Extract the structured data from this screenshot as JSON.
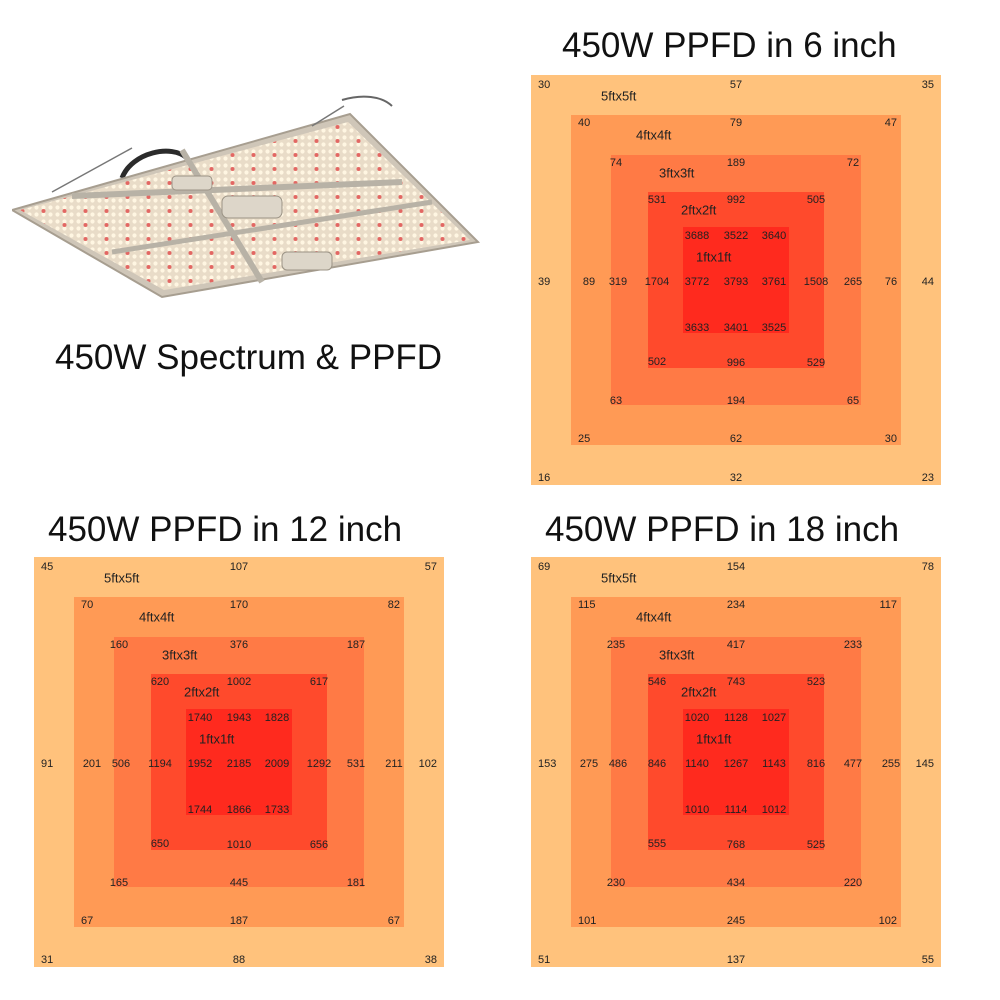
{
  "product_title": "450W Spectrum & PPFD",
  "colors": {
    "ring_5ft": "#FFC27C",
    "ring_4ft": "#FF9A55",
    "ring_3ft": "#FF7A45",
    "ring_2ft": "#FF4A2C",
    "ring_1ft": "#FF2A1E",
    "value_text": "#222222"
  },
  "chart_data": [
    {
      "type": "heatmap",
      "title": "450W PPFD in 6 inch",
      "rings": [
        {
          "label": "5ftx5ft",
          "corners": [
            30,
            57,
            35,
            39,
            44,
            16,
            32,
            23
          ]
        },
        {
          "label": "4ftx4ft",
          "corners": [
            40,
            79,
            47,
            89,
            76,
            25,
            62,
            30
          ]
        },
        {
          "label": "3ftx3ft",
          "corners": [
            74,
            189,
            72,
            319,
            265,
            63,
            194,
            65
          ]
        },
        {
          "label": "2ftx2ft",
          "corners": [
            531,
            992,
            505,
            1704,
            1508,
            502,
            996,
            529
          ]
        },
        {
          "label": "1ftx1ft",
          "grid": [
            [
              3688,
              3522,
              3640
            ],
            [
              3772,
              3793,
              3761
            ],
            [
              3633,
              3401,
              3525
            ]
          ]
        }
      ]
    },
    {
      "type": "heatmap",
      "title": "450W PPFD in 12 inch",
      "rings": [
        {
          "label": "5ftx5ft",
          "corners": [
            45,
            107,
            57,
            91,
            102,
            31,
            88,
            38
          ]
        },
        {
          "label": "4ftx4ft",
          "corners": [
            70,
            170,
            82,
            201,
            211,
            67,
            187,
            67
          ]
        },
        {
          "label": "3ftx3ft",
          "corners": [
            160,
            376,
            187,
            506,
            531,
            165,
            445,
            181
          ]
        },
        {
          "label": "2ftx2ft",
          "corners": [
            620,
            1002,
            617,
            1194,
            1292,
            650,
            1010,
            656
          ]
        },
        {
          "label": "1ftx1ft",
          "grid": [
            [
              1740,
              1943,
              1828
            ],
            [
              1952,
              2185,
              2009
            ],
            [
              1744,
              1866,
              1733
            ]
          ]
        }
      ]
    },
    {
      "type": "heatmap",
      "title": "450W PPFD in 18 inch",
      "rings": [
        {
          "label": "5ftx5ft",
          "corners": [
            69,
            154,
            78,
            153,
            145,
            51,
            137,
            55
          ]
        },
        {
          "label": "4ftx4ft",
          "corners": [
            115,
            234,
            117,
            275,
            255,
            101,
            245,
            102
          ]
        },
        {
          "label": "3ftx3ft",
          "corners": [
            235,
            417,
            233,
            486,
            477,
            230,
            434,
            220
          ]
        },
        {
          "label": "2ftx2ft",
          "corners": [
            546,
            743,
            523,
            846,
            816,
            555,
            768,
            525
          ]
        },
        {
          "label": "1ftx1ft",
          "grid": [
            [
              1020,
              1128,
              1027
            ],
            [
              1140,
              1267,
              1143
            ],
            [
              1010,
              1114,
              1012
            ]
          ]
        }
      ]
    }
  ]
}
